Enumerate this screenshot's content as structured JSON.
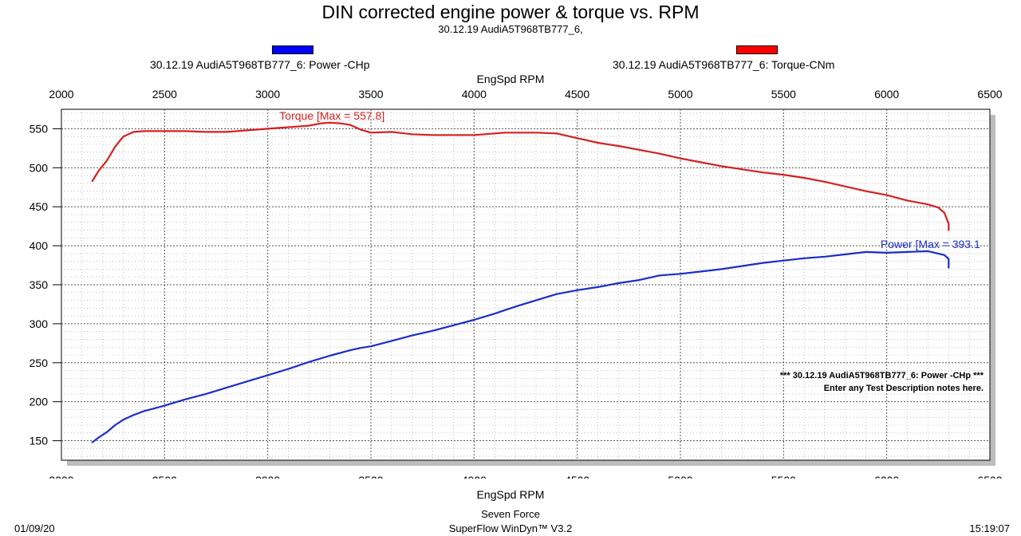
{
  "header": {
    "title": "DIN corrected engine power & torque vs. RPM",
    "subtitle": "30.12.19 AudiA5T968TB777_6,"
  },
  "legend": [
    {
      "label": "30.12.19 AudiA5T968TB777_6: Power -CHp",
      "color": "#0000ff"
    },
    {
      "label": "30.12.19 AudiA5T968TB777_6: Torque-CNm",
      "color": "#ff0000"
    }
  ],
  "footer": {
    "company": "Seven Force",
    "software": "SuperFlow WinDyn™ V3.2",
    "date": "01/09/20",
    "time": "15:19:07"
  },
  "chart_data": {
    "type": "line",
    "xlabel": "EngSpd RPM",
    "xlim": [
      2000,
      6500
    ],
    "ylim": [
      125,
      575
    ],
    "x_ticks": [
      "2000",
      "2500",
      "3000",
      "3500",
      "4000",
      "4500",
      "5000",
      "5500",
      "6000",
      "6500"
    ],
    "y_ticks": [
      "550",
      "500",
      "450",
      "400",
      "350",
      "300",
      "250",
      "200",
      "150"
    ],
    "grid": true,
    "series": [
      {
        "name": "Torque-CNm",
        "color": "#d42020",
        "x": [
          2150,
          2180,
          2220,
          2260,
          2300,
          2350,
          2400,
          2500,
          2600,
          2700,
          2800,
          2900,
          3000,
          3100,
          3200,
          3260,
          3300,
          3350,
          3400,
          3450,
          3500,
          3600,
          3700,
          3800,
          3900,
          4000,
          4100,
          4150,
          4200,
          4300,
          4400,
          4500,
          4600,
          4700,
          4800,
          4900,
          5000,
          5100,
          5200,
          5300,
          5400,
          5500,
          5600,
          5700,
          5800,
          5900,
          6000,
          6100,
          6200,
          6250,
          6280,
          6300,
          6300
        ],
        "values": [
          483,
          496,
          509,
          527,
          540,
          546,
          547,
          547,
          547,
          546,
          546,
          548,
          550,
          552,
          554,
          557,
          557.8,
          557,
          555,
          549,
          545,
          546,
          543,
          542,
          542,
          542,
          544,
          545,
          545,
          545,
          544,
          538,
          532,
          528,
          523,
          518,
          512,
          507,
          502,
          498,
          494,
          491,
          487,
          482,
          476,
          470,
          465,
          458,
          453,
          449,
          442,
          428,
          420
        ]
      },
      {
        "name": "Power -CHp",
        "color": "#1a2ec8",
        "x": [
          2150,
          2180,
          2220,
          2260,
          2300,
          2350,
          2400,
          2500,
          2600,
          2700,
          2800,
          2900,
          3000,
          3100,
          3200,
          3300,
          3400,
          3450,
          3500,
          3600,
          3700,
          3800,
          3900,
          4000,
          4100,
          4200,
          4300,
          4400,
          4500,
          4600,
          4700,
          4800,
          4900,
          5000,
          5100,
          5200,
          5300,
          5400,
          5500,
          5600,
          5700,
          5800,
          5900,
          6000,
          6100,
          6200,
          6250,
          6280,
          6300,
          6300
        ],
        "values": [
          148,
          154,
          161,
          170,
          177,
          183,
          188,
          195,
          203,
          210,
          218,
          226,
          234,
          242,
          251,
          259,
          266,
          269,
          271,
          278,
          285,
          291,
          298,
          305,
          313,
          322,
          330,
          338,
          343,
          347,
          352,
          356,
          362,
          364,
          367,
          370,
          374,
          378,
          381,
          384,
          386,
          389,
          392,
          391,
          392,
          393.1,
          390,
          388,
          383,
          372
        ]
      }
    ],
    "annotations": [
      {
        "text": "Torque [Max = 557.8]",
        "x": 3300,
        "y": 557.8,
        "color": "#d42020"
      },
      {
        "text": "Power  [Max = 393.1",
        "x": 6250,
        "y": 393.1,
        "color": "#1a2ec8"
      }
    ],
    "notes": [
      "*** 30.12.19 AudiA5T968TB777_6: Power -CHp    ***",
      "Enter any Test Description notes here."
    ]
  }
}
